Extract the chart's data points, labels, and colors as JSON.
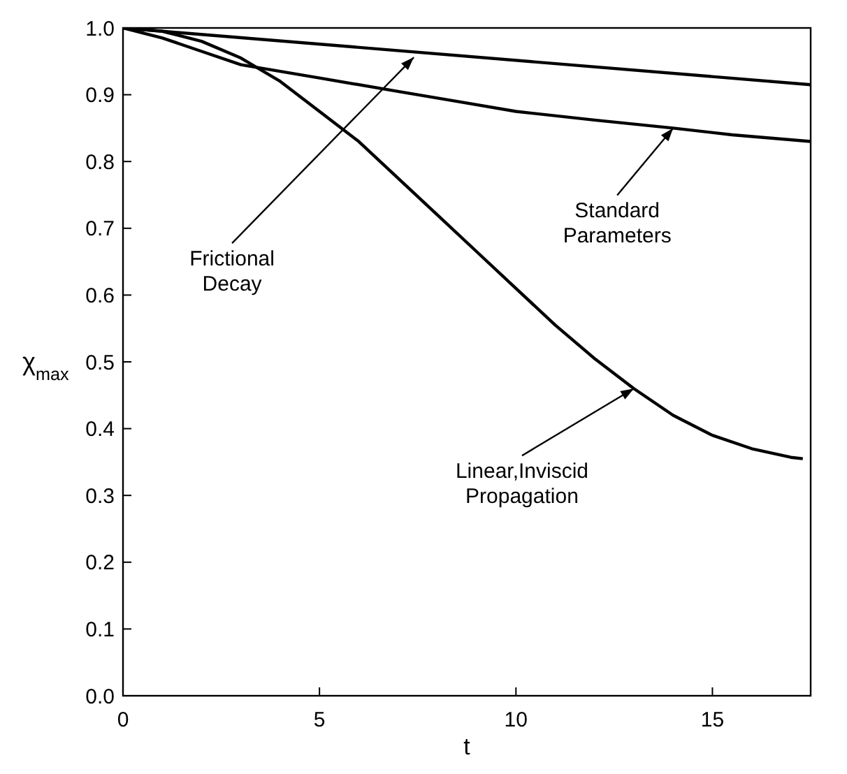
{
  "chart_data": {
    "type": "line",
    "xlabel": "t",
    "ylabel": "χ$_{max}$",
    "xlim": [
      0,
      17.5
    ],
    "xticks": [
      0,
      5,
      10,
      15
    ],
    "ylim": [
      0,
      1.0
    ],
    "yticks": [
      {
        "value": 0,
        "label": "0.0"
      },
      0.1,
      0.2,
      0.3,
      0.4,
      0.5,
      0.6,
      0.7,
      0.8,
      0.9,
      {
        "value": 1,
        "label": "1.0"
      }
    ],
    "grid": false,
    "marker": "none",
    "line_style": "solid",
    "series": [
      {
        "color": "#000000",
        "x": [
          0,
          17.5
        ],
        "values": [
          1.0,
          0.915
        ]
      },
      {
        "color": "#000000",
        "x": [
          0,
          1,
          2,
          3,
          3.5,
          5,
          7,
          8.5,
          10,
          12,
          14,
          15.5,
          17.5
        ],
        "values": [
          1.0,
          0.985,
          0.965,
          0.945,
          0.94,
          0.925,
          0.905,
          0.89,
          0.875,
          0.862,
          0.85,
          0.84,
          0.83
        ]
      },
      {
        "color": "#000000",
        "x": [
          0,
          1,
          2,
          3,
          4,
          5,
          6,
          7,
          8,
          9,
          10,
          11,
          12,
          13,
          14,
          15,
          16,
          17,
          17.3
        ],
        "values": [
          1.0,
          0.995,
          0.98,
          0.955,
          0.92,
          0.875,
          0.83,
          0.775,
          0.72,
          0.665,
          0.61,
          0.555,
          0.505,
          0.46,
          0.42,
          0.39,
          0.37,
          0.357,
          0.355
        ]
      }
    ],
    "annotations": [
      {
        "text": "Frictional\nDecay",
        "x": 7.4,
        "y": 0.956
      },
      {
        "text": "Standard\nParameters",
        "x": 14,
        "y": 0.85
      },
      {
        "text": "Linear,Inviscid\nPropagation",
        "x": 13,
        "y": 0.46
      }
    ]
  }
}
